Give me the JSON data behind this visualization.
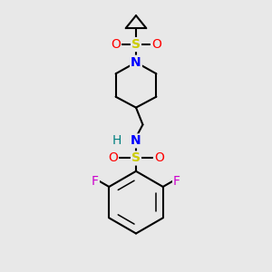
{
  "bg_color": "#e8e8e8",
  "bond_color": "#000000",
  "bond_width": 1.5,
  "atom_colors": {
    "S": "#cccc00",
    "O": "#ff0000",
    "N_blue": "#0000ff",
    "N_teal": "#008080",
    "F": "#cc00cc",
    "H": "#008080",
    "C": "#000000"
  },
  "font_size_atom": 10
}
